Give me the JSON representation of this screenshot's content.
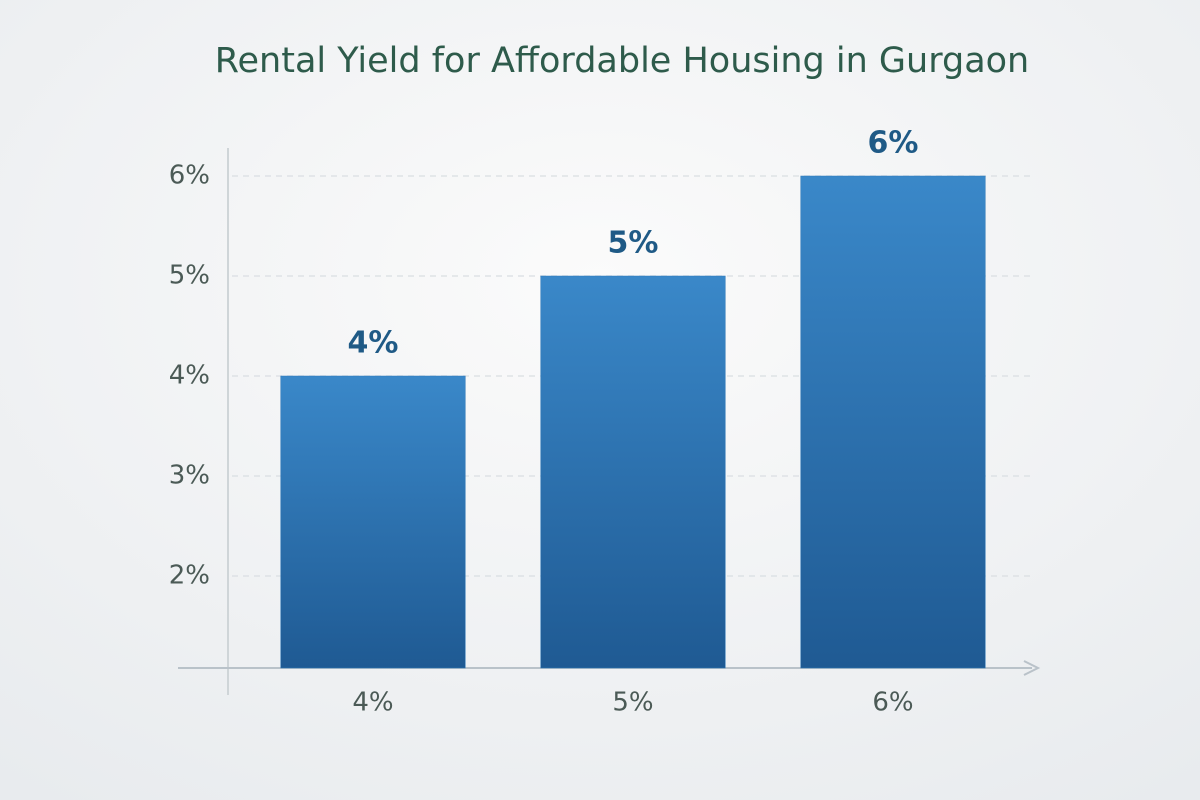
{
  "chart_data": {
    "type": "bar",
    "title": "Rental Yield for Affordable Housing in Gurgaon",
    "categories": [
      "4%",
      "5%",
      "6%"
    ],
    "values": [
      4,
      5,
      6
    ],
    "value_labels": [
      "4%",
      "5%",
      "6%"
    ],
    "color": "#2f78b9",
    "ylim": [
      1.08,
      6.28
    ],
    "yticks": [
      {
        "value": 2,
        "label": "2%"
      },
      {
        "value": 3,
        "label": "3%"
      },
      {
        "value": 4,
        "label": "4%"
      },
      {
        "value": 5,
        "label": "5%"
      },
      {
        "value": 6,
        "label": "6%"
      }
    ],
    "grid": true
  }
}
